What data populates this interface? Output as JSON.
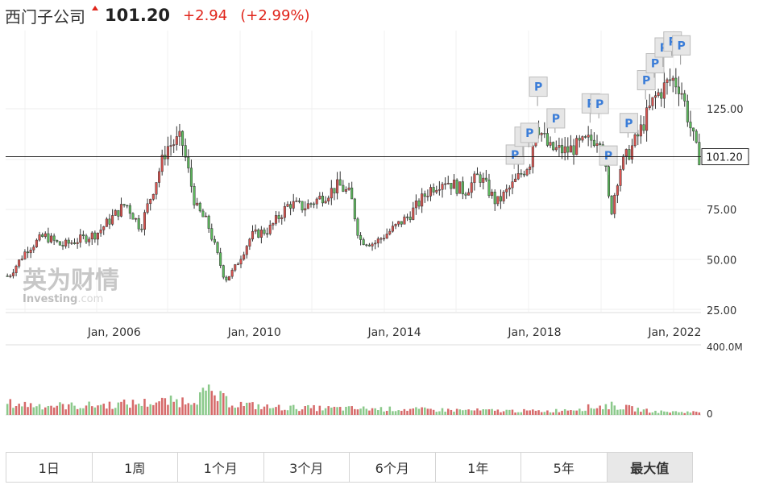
{
  "header": {
    "name": "西门子公司",
    "price": "101.20",
    "change": "+2.94",
    "change_pct": "(+2.99%)",
    "direction_icon": "up-arrow-icon"
  },
  "watermark": {
    "text_cn": "英为财情",
    "text_en": "Investing",
    "suffix": ".com"
  },
  "colors": {
    "up": "#d9534f",
    "down": "#5cb85c",
    "volume_up": "#d66a6a",
    "volume_down": "#8bc98b",
    "change": "#e0251b"
  },
  "chart_data": {
    "type": "candlestick",
    "x_tick_labels": [
      "Jan, 2006",
      "Jan, 2010",
      "Jan, 2014",
      "Jan, 2018",
      "Jan, 2022"
    ],
    "y_tick_labels": [
      "125.00",
      "75.00",
      "50.00",
      "25.00"
    ],
    "y_range": [
      25,
      150
    ],
    "grid": true,
    "last_price": 101.2,
    "last_price_label": "101.20",
    "volume_axis_labels": [
      "400.0M",
      "0"
    ],
    "volume_range": [
      0,
      400
    ],
    "price_points": [
      [
        "2003-01",
        42
      ],
      [
        "2003-07",
        55
      ],
      [
        "2004-01",
        62
      ],
      [
        "2004-07",
        57
      ],
      [
        "2005-01",
        60
      ],
      [
        "2005-07",
        63
      ],
      [
        "2006-01",
        72
      ],
      [
        "2006-05",
        78
      ],
      [
        "2006-10",
        66
      ],
      [
        "2007-03",
        88
      ],
      [
        "2007-07",
        106
      ],
      [
        "2007-12",
        110
      ],
      [
        "2008-05",
        76
      ],
      [
        "2008-09",
        68
      ],
      [
        "2009-03",
        40
      ],
      [
        "2009-06",
        45
      ],
      [
        "2009-12",
        62
      ],
      [
        "2010-06",
        65
      ],
      [
        "2011-01",
        78
      ],
      [
        "2011-06",
        76
      ],
      [
        "2012-01",
        82
      ],
      [
        "2012-06",
        87
      ],
      [
        "2012-10",
        82
      ],
      [
        "2013-01",
        60
      ],
      [
        "2013-06",
        58
      ],
      [
        "2014-01",
        66
      ],
      [
        "2014-06",
        72
      ],
      [
        "2015-01",
        85
      ],
      [
        "2015-06",
        90
      ],
      [
        "2016-01",
        84
      ],
      [
        "2016-06",
        92
      ],
      [
        "2016-12",
        78
      ],
      [
        "2017-06",
        88
      ],
      [
        "2017-12",
        100
      ],
      [
        "2018-01",
        120
      ],
      [
        "2018-06",
        105
      ],
      [
        "2018-12",
        104
      ],
      [
        "2019-06",
        108
      ],
      [
        "2019-12",
        112
      ],
      [
        "2020-03",
        72
      ],
      [
        "2020-06",
        95
      ],
      [
        "2020-12",
        110
      ],
      [
        "2021-06",
        130
      ],
      [
        "2021-12",
        140
      ],
      [
        "2022-03",
        136
      ],
      [
        "2022-06",
        118
      ],
      [
        "2022-09",
        101
      ]
    ],
    "volume_points": [
      [
        "2003-01",
        120
      ],
      [
        "2004-01",
        100
      ],
      [
        "2005-01",
        95
      ],
      [
        "2006-01",
        110
      ],
      [
        "2007-01",
        130
      ],
      [
        "2008-01",
        150
      ],
      [
        "2008-09",
        230
      ],
      [
        "2009-06",
        120
      ],
      [
        "2010-06",
        80
      ],
      [
        "2012-01",
        70
      ],
      [
        "2013-06",
        65
      ],
      [
        "2015-01",
        55
      ],
      [
        "2017-01",
        45
      ],
      [
        "2018-06",
        40
      ],
      [
        "2020-03",
        100
      ],
      [
        "2021-06",
        35
      ],
      [
        "2022-09",
        30
      ]
    ],
    "event_markers": [
      {
        "date": "2017-06",
        "label": "P"
      },
      {
        "date": "2017-09",
        "label": "P"
      },
      {
        "date": "2017-11",
        "label": "P"
      },
      {
        "date": "2018-02",
        "label": "P"
      },
      {
        "date": "2018-08",
        "label": "P"
      },
      {
        "date": "2019-08",
        "label": "P"
      },
      {
        "date": "2019-11",
        "label": "P"
      },
      {
        "date": "2020-02",
        "label": "P"
      },
      {
        "date": "2020-09",
        "label": "P"
      },
      {
        "date": "2021-03",
        "label": "P"
      },
      {
        "date": "2021-06",
        "label": "P"
      },
      {
        "date": "2021-09",
        "label": "P"
      },
      {
        "date": "2021-12",
        "label": "P"
      },
      {
        "date": "2022-03",
        "label": "P"
      }
    ]
  },
  "time_ranges": [
    {
      "label": "1日",
      "active": false
    },
    {
      "label": "1周",
      "active": false
    },
    {
      "label": "1个月",
      "active": false
    },
    {
      "label": "3个月",
      "active": false
    },
    {
      "label": "6个月",
      "active": false
    },
    {
      "label": "1年",
      "active": false
    },
    {
      "label": "5年",
      "active": false
    },
    {
      "label": "最大值",
      "active": true
    }
  ]
}
